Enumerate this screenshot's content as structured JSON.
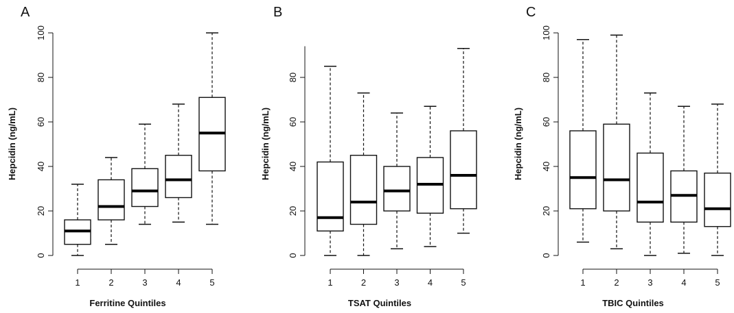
{
  "chart_data": [
    {
      "type": "box",
      "panel_label": "A",
      "categories": [
        "1",
        "2",
        "3",
        "4",
        "5"
      ],
      "xlabel": "Ferritine Quintiles",
      "ylabel": "Hepcidin (ng/mL)",
      "ylim": [
        0,
        100
      ],
      "yticks": [
        0,
        20,
        40,
        60,
        80,
        100
      ],
      "boxes": [
        {
          "whisker_low": 0,
          "q1": 5,
          "median": 11,
          "q3": 16,
          "whisker_high": 32
        },
        {
          "whisker_low": 5,
          "q1": 16,
          "median": 22,
          "q3": 34,
          "whisker_high": 44
        },
        {
          "whisker_low": 14,
          "q1": 22,
          "median": 29,
          "q3": 39,
          "whisker_high": 59
        },
        {
          "whisker_low": 15,
          "q1": 26,
          "median": 34,
          "q3": 45,
          "whisker_high": 68
        },
        {
          "whisker_low": 14,
          "q1": 38,
          "median": 55,
          "q3": 71,
          "whisker_high": 100
        }
      ]
    },
    {
      "type": "box",
      "panel_label": "B",
      "categories": [
        "1",
        "2",
        "3",
        "4",
        "5"
      ],
      "xlabel": "TSAT Quintiles",
      "ylabel": "Hepcidin (ng/mL)",
      "ylim": [
        0,
        94
      ],
      "yticks": [
        0,
        20,
        40,
        60,
        80
      ],
      "boxes": [
        {
          "whisker_low": 0,
          "q1": 11,
          "median": 17,
          "q3": 42,
          "whisker_high": 85
        },
        {
          "whisker_low": 0,
          "q1": 14,
          "median": 24,
          "q3": 45,
          "whisker_high": 73
        },
        {
          "whisker_low": 3,
          "q1": 20,
          "median": 29,
          "q3": 40,
          "whisker_high": 64
        },
        {
          "whisker_low": 4,
          "q1": 19,
          "median": 32,
          "q3": 44,
          "whisker_high": 67
        },
        {
          "whisker_low": 10,
          "q1": 21,
          "median": 36,
          "q3": 56,
          "whisker_high": 93
        }
      ]
    },
    {
      "type": "box",
      "panel_label": "C",
      "categories": [
        "1",
        "2",
        "3",
        "4",
        "5"
      ],
      "xlabel": "TBIC Quintiles",
      "ylabel": "Hepcidin (ng/mL)",
      "ylim": [
        0,
        100
      ],
      "yticks": [
        0,
        20,
        40,
        60,
        80,
        100
      ],
      "boxes": [
        {
          "whisker_low": 6,
          "q1": 21,
          "median": 35,
          "q3": 56,
          "whisker_high": 97
        },
        {
          "whisker_low": 3,
          "q1": 20,
          "median": 34,
          "q3": 59,
          "whisker_high": 99
        },
        {
          "whisker_low": 0,
          "q1": 15,
          "median": 24,
          "q3": 46,
          "whisker_high": 73
        },
        {
          "whisker_low": 1,
          "q1": 15,
          "median": 27,
          "q3": 38,
          "whisker_high": 67
        },
        {
          "whisker_low": 0,
          "q1": 13,
          "median": 21,
          "q3": 37,
          "whisker_high": 68
        }
      ]
    }
  ]
}
